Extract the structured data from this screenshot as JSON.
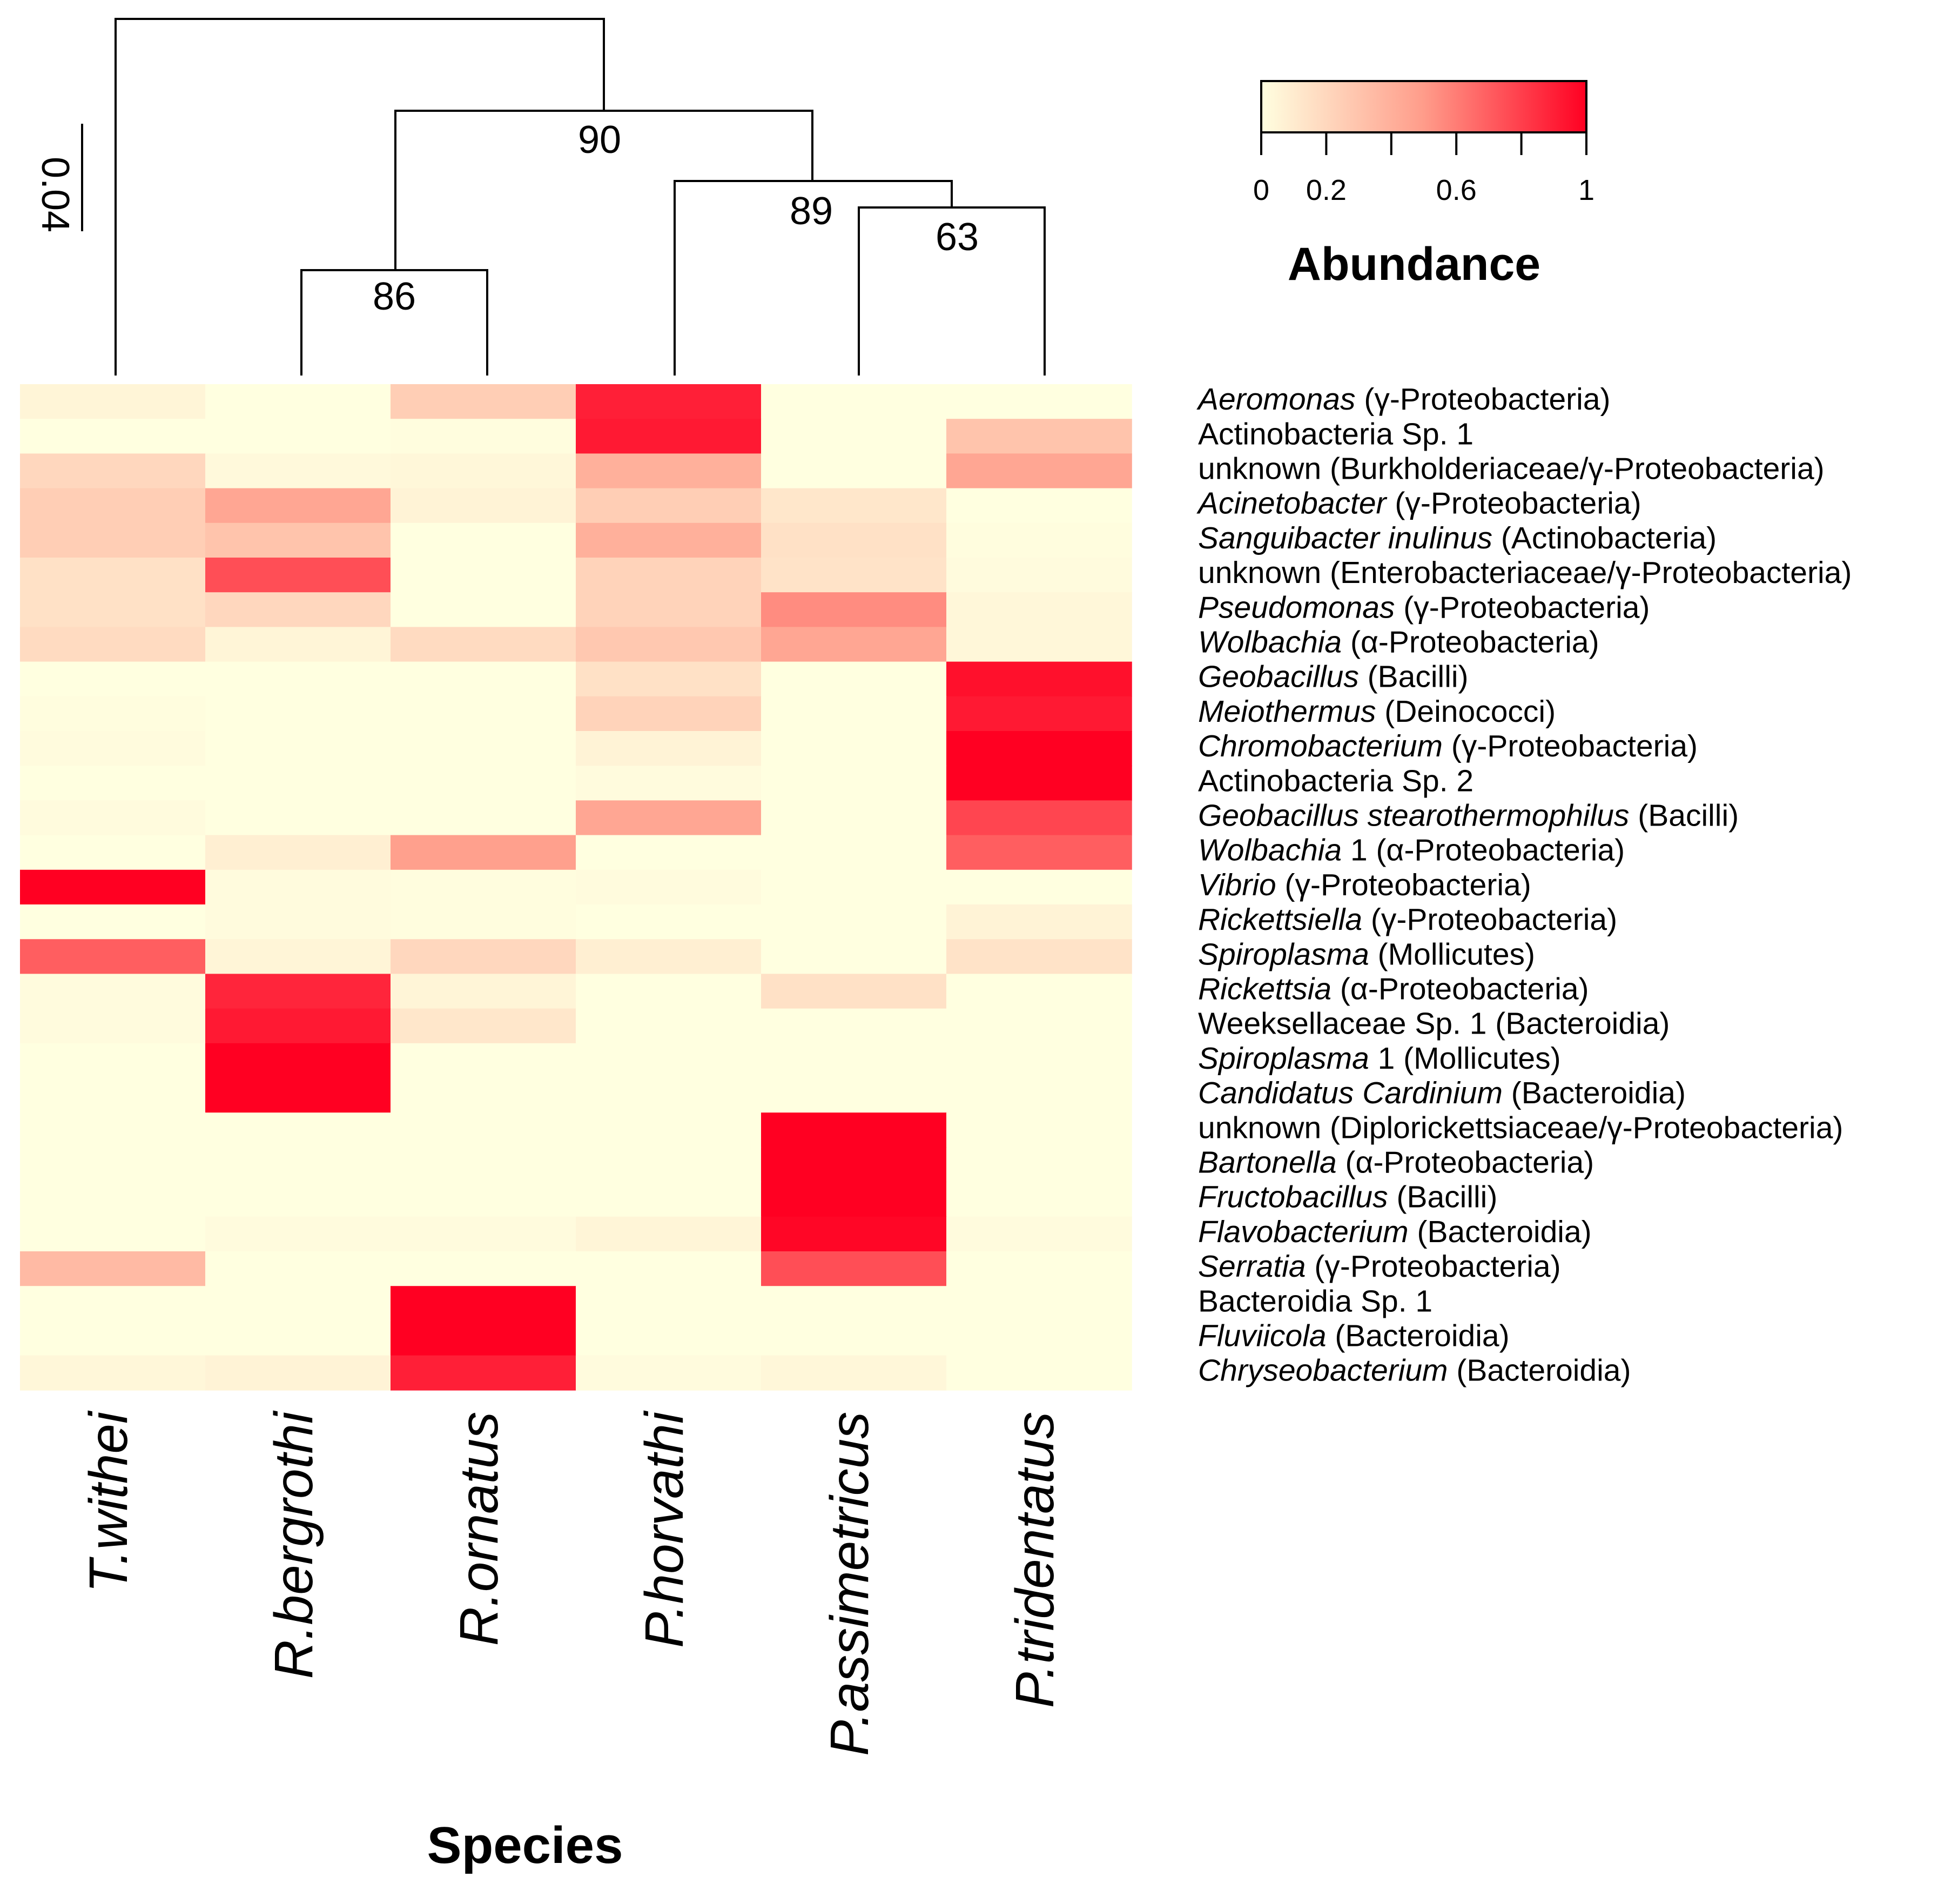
{
  "chart_data": {
    "type": "heatmap",
    "xlabel": "Species",
    "columns": [
      "T.withei",
      "R.bergrothi",
      "R.ornatus",
      "P.horvathi",
      "P.assimetricus",
      "P.tridentatus"
    ],
    "rows": [
      {
        "name": "Aeromonas",
        "rest": " (γ-Proteobacteria)",
        "name_italic": true
      },
      {
        "name": "Actinobacteria Sp. 1",
        "rest": "",
        "name_italic": false
      },
      {
        "name": "unknown (Burkholderiaceae/γ-Proteobacteria)",
        "rest": "",
        "name_italic": false
      },
      {
        "name": "Acinetobacter",
        "rest": " (γ-Proteobacteria)",
        "name_italic": true
      },
      {
        "name": "Sanguibacter inulinus",
        "rest": " (Actinobacteria)",
        "name_italic": true
      },
      {
        "name": "unknown (Enterobacteriaceae/γ-Proteobacteria)",
        "rest": "",
        "name_italic": false
      },
      {
        "name": "Pseudomonas",
        "rest": " (γ-Proteobacteria)",
        "name_italic": true
      },
      {
        "name": "Wolbachia",
        "rest": " (α-Proteobacteria)",
        "name_italic": true
      },
      {
        "name": "Geobacillus",
        "rest": " (Bacilli)",
        "name_italic": true
      },
      {
        "name": "Meiothermus",
        "rest": " (Deinococci)",
        "name_italic": true
      },
      {
        "name": "Chromobacterium",
        "rest": " (γ-Proteobacteria)",
        "name_italic": true
      },
      {
        "name": "Actinobacteria Sp. 2",
        "rest": "",
        "name_italic": false
      },
      {
        "name": "Geobacillus stearothermophilus",
        "rest": " (Bacilli)",
        "name_italic": true
      },
      {
        "name": "Wolbachia",
        "rest": " 1 (α-Proteobacteria)",
        "name_italic": true
      },
      {
        "name": "Vibrio",
        "rest": " (γ-Proteobacteria)",
        "name_italic": true
      },
      {
        "name": "Rickettsiella",
        "rest": " (γ-Proteobacteria)",
        "name_italic": true
      },
      {
        "name": "Spiroplasma",
        "rest": " (Mollicutes)",
        "name_italic": true
      },
      {
        "name": "Rickettsia",
        "rest": " (α-Proteobacteria)",
        "name_italic": true
      },
      {
        "name": "Weeksellaceae Sp. 1 (Bacteroidia)",
        "rest": "",
        "name_italic": false
      },
      {
        "name": "Spiroplasma",
        "rest": " 1 (Mollicutes)",
        "name_italic": true
      },
      {
        "name": "Candidatus Cardinium",
        "rest": " (Bacteroidia)",
        "name_italic": true
      },
      {
        "name": "unknown (Diplorickettsiaceae/γ-Proteobacteria)",
        "rest": "",
        "name_italic": false
      },
      {
        "name": "Bartonella",
        "rest": " (α-Proteobacteria)",
        "name_italic": true
      },
      {
        "name": "Fructobacillus",
        "rest": " (Bacilli)",
        "name_italic": true
      },
      {
        "name": "Flavobacterium",
        "rest": " (Bacteroidia)",
        "name_italic": true
      },
      {
        "name": "Serratia",
        "rest": " (γ-Proteobacteria)",
        "name_italic": true
      },
      {
        "name": "Bacteroidia Sp. 1",
        "rest": "",
        "name_italic": false
      },
      {
        "name": "Fluviicola",
        "rest": " (Bacteroidia)",
        "name_italic": true
      },
      {
        "name": "Chryseobacterium",
        "rest": " (Bacteroidia)",
        "name_italic": true
      }
    ],
    "values": [
      [
        0.05,
        0.0,
        0.25,
        0.9,
        0.0,
        0.0
      ],
      [
        0.0,
        0.0,
        0.01,
        0.92,
        0.0,
        0.3
      ],
      [
        0.2,
        0.03,
        0.04,
        0.4,
        0.0,
        0.45
      ],
      [
        0.25,
        0.45,
        0.06,
        0.25,
        0.12,
        0.0
      ],
      [
        0.25,
        0.3,
        0.0,
        0.4,
        0.15,
        0.01
      ],
      [
        0.15,
        0.75,
        0.0,
        0.22,
        0.14,
        0.02
      ],
      [
        0.15,
        0.2,
        0.0,
        0.22,
        0.55,
        0.04
      ],
      [
        0.18,
        0.05,
        0.18,
        0.28,
        0.45,
        0.04
      ],
      [
        0.0,
        0.0,
        0.0,
        0.15,
        0.0,
        0.95
      ],
      [
        0.01,
        0.0,
        0.0,
        0.22,
        0.0,
        0.92
      ],
      [
        0.02,
        0.0,
        0.0,
        0.06,
        0.0,
        1.0
      ],
      [
        0.0,
        0.0,
        0.0,
        0.02,
        0.0,
        1.0
      ],
      [
        0.02,
        0.0,
        0.0,
        0.45,
        0.0,
        0.78
      ],
      [
        0.0,
        0.08,
        0.48,
        0.0,
        0.0,
        0.7
      ],
      [
        1.0,
        0.02,
        0.01,
        0.02,
        0.0,
        0.0
      ],
      [
        0.0,
        0.02,
        0.01,
        0.0,
        0.0,
        0.06
      ],
      [
        0.7,
        0.05,
        0.2,
        0.08,
        0.0,
        0.14
      ],
      [
        0.02,
        0.88,
        0.05,
        0.0,
        0.15,
        0.0
      ],
      [
        0.02,
        0.92,
        0.12,
        0.0,
        0.0,
        0.0
      ],
      [
        0.0,
        1.0,
        0.0,
        0.0,
        0.0,
        0.0
      ],
      [
        0.0,
        1.0,
        0.0,
        0.0,
        0.0,
        0.0
      ],
      [
        0.0,
        0.0,
        0.0,
        0.0,
        1.0,
        0.0
      ],
      [
        0.0,
        0.0,
        0.0,
        0.0,
        1.0,
        0.0
      ],
      [
        0.0,
        0.0,
        0.0,
        0.0,
        1.0,
        0.0
      ],
      [
        0.0,
        0.02,
        0.02,
        0.05,
        0.98,
        0.02
      ],
      [
        0.35,
        0.0,
        0.0,
        0.0,
        0.75,
        0.0
      ],
      [
        0.0,
        0.0,
        1.0,
        0.0,
        0.0,
        0.0
      ],
      [
        0.0,
        0.0,
        1.0,
        0.0,
        0.0,
        0.0
      ],
      [
        0.04,
        0.06,
        0.9,
        0.02,
        0.04,
        0.0
      ]
    ],
    "colorbar": {
      "title": "Abundance",
      "ticks": [
        {
          "value": 0,
          "label": "0"
        },
        {
          "value": 0.2,
          "label": "0.2"
        },
        {
          "value": 0.4,
          "label": ""
        },
        {
          "value": 0.6,
          "label": "0.6"
        },
        {
          "value": 0.8,
          "label": ""
        },
        {
          "value": 1,
          "label": "1"
        }
      ],
      "low_color": "#FFFFE0",
      "mid_color": "#FF9C8A",
      "high_color": "#FF0022"
    },
    "dendrogram": {
      "scale_label": "0.04",
      "scale_value": 0.04,
      "node_labels": [
        "90",
        "89",
        "63",
        "86"
      ],
      "topology": "(T.withei,((R.bergrothi,R.ornatus)86,(P.horvathi,(P.assimetricus,P.tridentatus)63)89)90)"
    }
  }
}
